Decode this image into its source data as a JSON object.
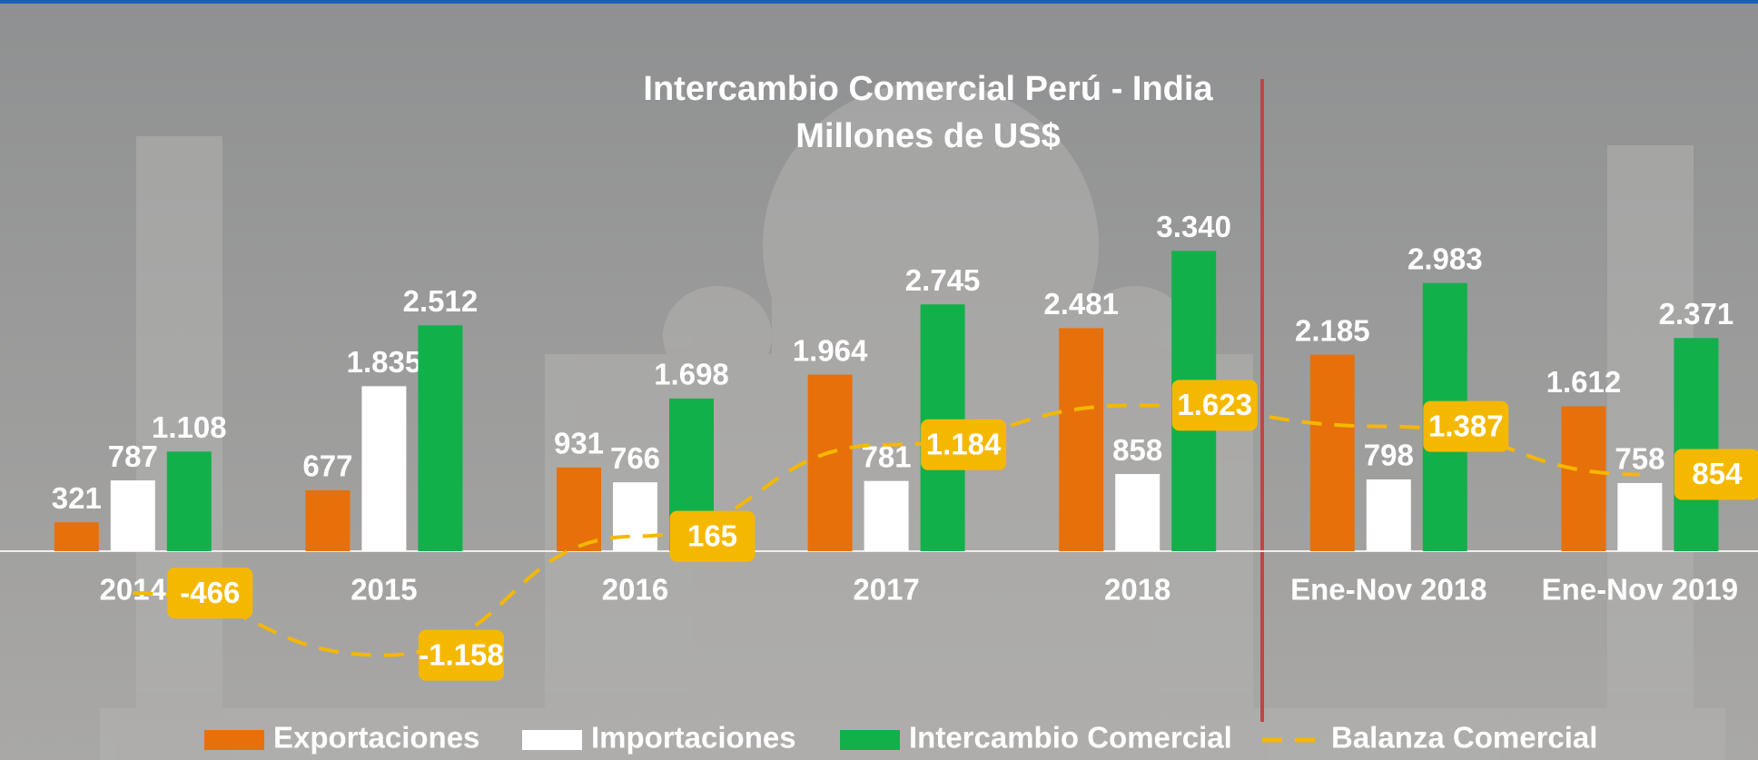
{
  "chart_data": {
    "type": "bar",
    "title": "Intercambio Comercial Perú - India",
    "subtitle": "Millones de US$",
    "categories": [
      "2014",
      "2015",
      "2016",
      "2017",
      "2018",
      "Ene-Nov 2018",
      "Ene-Nov 2019"
    ],
    "series": [
      {
        "name": "Exportaciones",
        "color": "#e8700a",
        "values": [
          321,
          677,
          931,
          1964,
          2481,
          2185,
          1612
        ],
        "value_labels": [
          "321",
          "677",
          "931",
          "1.964",
          "2.481",
          "2.185",
          "1.612"
        ]
      },
      {
        "name": "Importaciones",
        "color": "#ffffff",
        "values": [
          787,
          1835,
          766,
          781,
          858,
          798,
          758
        ],
        "value_labels": [
          "787",
          "1.835",
          "766",
          "781",
          "858",
          "798",
          "758"
        ]
      },
      {
        "name": "Intercambio Comercial",
        "color": "#12b04a",
        "values": [
          1108,
          2512,
          1698,
          2745,
          3340,
          2983,
          2371
        ],
        "value_labels": [
          "1.108",
          "2.512",
          "1.698",
          "2.745",
          "3.340",
          "2.983",
          "2.371"
        ]
      },
      {
        "name": "Balanza Comercial",
        "color": "#f5b800",
        "type": "line",
        "values": [
          -466,
          -1158,
          165,
          1184,
          1623,
          1387,
          854
        ],
        "value_labels": [
          "-466",
          "-1.158",
          "165",
          "1.184",
          "1.623",
          "1.387",
          "854"
        ]
      }
    ],
    "ylim": [
      -2000,
      4500
    ],
    "legend": "bottom"
  }
}
